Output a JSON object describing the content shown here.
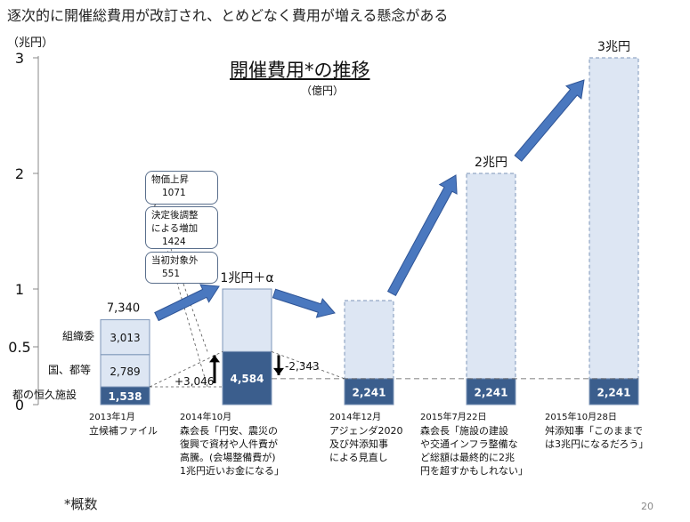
{
  "slide": {
    "heading": "逐次的に開催総費用が改訂され、とめどなく費用が増える懸念がある",
    "footnote": "*概数",
    "page_number": "20"
  },
  "colors": {
    "dark": "#3b5e8d",
    "light": "#dde6f3",
    "stroke": "#7d95b8",
    "arrow": "#4a78bf"
  },
  "chart_data": {
    "type": "bar",
    "title": "開催費用*の推移",
    "subtitle": "（億円）",
    "y_unit": "（兆円）",
    "y_ticks": [
      "3",
      "2",
      "1",
      "0.5",
      "0"
    ],
    "categories": [
      "2013年1月|立候補ファイル",
      "2014年10月|森会長「円安、震災の|復興で資材や人件費が|高騰。(会場整備費が)|1兆円近いお金になる」",
      "2014年12月|アジェンダ2020|及び舛添知事|による見直し",
      "2015年7月22日|森会長「施設の建設|や交通インフラ整備な|ど総額は最終的に2兆|円を超すかもしれない」",
      "2015年10月28日|舛添知事「このままで|は3兆円になるだろう」"
    ],
    "segment_labels": [
      "都の恒久施設",
      "国、都等",
      "組織委"
    ],
    "bar_2013": {
      "segments": [
        1538,
        2789,
        3013
      ],
      "labels": [
        "1,538",
        "2,789",
        "3,013"
      ],
      "total": "7,340"
    },
    "base_values": [
      1538,
      4584,
      2241,
      2241,
      2241
    ],
    "base_labels": [
      "1,538",
      "4,584",
      "2,241",
      "2,241",
      "2,241"
    ],
    "estimates": [
      {
        "category": "2014年10月",
        "label": "1兆円＋α",
        "value": 10000
      },
      {
        "category": "2014年12月",
        "label": "",
        "value": 9000
      },
      {
        "category": "2015年7月22日",
        "label": "2兆円",
        "value": 20000
      },
      {
        "category": "2015年10月28日",
        "label": "3兆円",
        "value": 30000
      }
    ],
    "changes": [
      {
        "label": "+3,046",
        "direction": "up"
      },
      {
        "label": "-2,343",
        "direction": "down"
      }
    ],
    "breakdown": [
      {
        "label": "物価上昇",
        "value": "1071"
      },
      {
        "label": "決定後調整|による増加",
        "value": "1424"
      },
      {
        "label": "当初対象外",
        "value": "551"
      }
    ]
  }
}
